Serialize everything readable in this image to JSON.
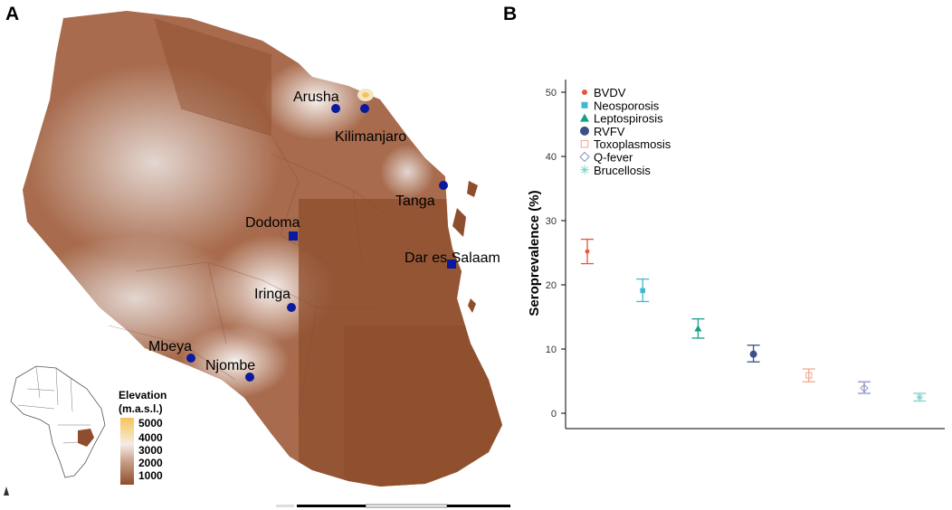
{
  "panel_a": {
    "letter": "A",
    "cities": [
      {
        "name": "Arusha",
        "marker": "circle"
      },
      {
        "name": "Kilimanjaro",
        "marker": "circle"
      },
      {
        "name": "Tanga",
        "marker": "circle"
      },
      {
        "name": "Dodoma",
        "marker": "square"
      },
      {
        "name": "Dar es Salaam",
        "marker": "square"
      },
      {
        "name": "Iringa",
        "marker": "circle"
      },
      {
        "name": "Mbeya",
        "marker": "circle"
      },
      {
        "name": "Njombe",
        "marker": "circle"
      }
    ],
    "elevation_legend": {
      "title_line1": "Elevation",
      "title_line2": "(m.a.s.l.)",
      "ticks": [
        "5000",
        "4000",
        "3000",
        "2000",
        "1000"
      ]
    },
    "colors": {
      "lowland": "#8e4d2c",
      "mid": "#c9a089",
      "highland": "#f3ece8",
      "peak": "#f6c35a",
      "site_marker": "#0a1a9e"
    }
  },
  "panel_b": {
    "letter": "B"
  },
  "chart_data": {
    "type": "scatter",
    "ylabel": "Seroprevalence (%)",
    "xlabel": "",
    "ylim": [
      0,
      50
    ],
    "yticks": [
      "0",
      "10",
      "20",
      "30",
      "40",
      "50"
    ],
    "grid": false,
    "legend_position": "top-left",
    "series": [
      {
        "name": "BVDV",
        "value": 25.2,
        "lower": 23.3,
        "upper": 27.1,
        "color": "#e8553e",
        "shape": "dot"
      },
      {
        "name": "Neosporosis",
        "value": 19.1,
        "lower": 17.4,
        "upper": 20.9,
        "color": "#3bbbd0",
        "shape": "square"
      },
      {
        "name": "Leptospirosis",
        "value": 13.2,
        "lower": 11.7,
        "upper": 14.7,
        "color": "#17a085",
        "shape": "triangle"
      },
      {
        "name": "RVFV",
        "value": 9.2,
        "lower": 8.0,
        "upper": 10.6,
        "color": "#3c5088",
        "shape": "circle"
      },
      {
        "name": "Toxoplasmosis",
        "value": 5.9,
        "lower": 4.9,
        "upper": 6.9,
        "color": "#f0a88c",
        "shape": "open-square"
      },
      {
        "name": "Q-fever",
        "value": 3.9,
        "lower": 3.1,
        "upper": 4.9,
        "color": "#8a93c2",
        "shape": "open-diamond"
      },
      {
        "name": "Brucellosis",
        "value": 2.5,
        "lower": 1.9,
        "upper": 3.1,
        "color": "#7ed3c8",
        "shape": "asterisk"
      }
    ]
  }
}
